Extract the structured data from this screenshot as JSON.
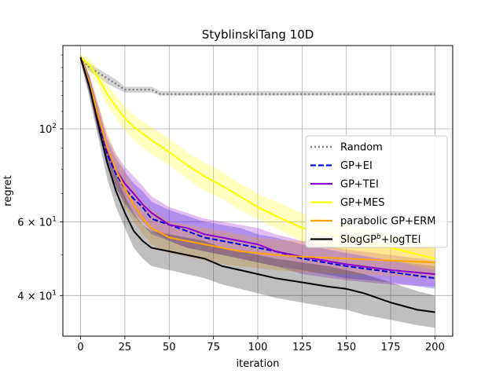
{
  "chart_data": {
    "type": "line",
    "title": "StyblinskiTang 10D",
    "xlabel": "iteration",
    "ylabel": "regret",
    "xlim": [
      -10,
      210
    ],
    "ylim": [
      32,
      158
    ],
    "yscale": "log",
    "grid": true,
    "legend_position": "center-right",
    "x_ticks": [
      0,
      25,
      50,
      75,
      100,
      125,
      150,
      175,
      200
    ],
    "y_ticks": [
      {
        "value": 100,
        "label_base": "10",
        "label_exp": "2"
      },
      {
        "value": 60,
        "label_base": "6 × 10",
        "label_exp": "1"
      },
      {
        "value": 40,
        "label_base": "4 × 10",
        "label_exp": "1"
      }
    ],
    "series": [
      {
        "name": "Random",
        "color": "#808080",
        "style": "dotted",
        "x": [
          0,
          5,
          10,
          15,
          20,
          25,
          30,
          40,
          45,
          50,
          100,
          150,
          200
        ],
        "y": [
          148,
          140,
          136,
          132,
          128,
          124,
          124,
          124,
          121,
          121,
          121,
          121,
          121
        ],
        "lower": [
          145,
          137,
          133,
          128,
          125,
          122,
          122,
          122,
          120,
          120,
          120,
          120,
          120
        ],
        "upper": [
          150,
          143,
          139,
          135,
          131,
          126,
          126,
          126,
          123,
          123,
          123,
          123,
          123
        ]
      },
      {
        "name": "GP+EI",
        "color": "#0000dd",
        "style": "dashed",
        "x": [
          0,
          5,
          10,
          15,
          20,
          25,
          30,
          35,
          40,
          50,
          60,
          70,
          80,
          90,
          100,
          110,
          125,
          150,
          175,
          200
        ],
        "y": [
          148,
          128,
          105,
          87,
          78,
          72,
          68,
          65,
          61,
          59,
          57,
          55,
          54,
          53,
          52,
          51,
          49,
          47,
          45.5,
          44
        ],
        "lower": [
          145,
          122,
          98,
          81,
          72,
          66,
          62,
          59,
          56,
          54,
          52,
          51,
          50,
          49,
          48,
          47,
          46,
          44,
          43,
          41.5
        ],
        "upper": [
          150,
          133,
          112,
          94,
          85,
          79,
          74,
          71,
          67,
          64,
          62,
          60,
          59,
          58,
          56,
          55,
          53,
          50.5,
          48.5,
          47
        ]
      },
      {
        "name": "GP+TEI",
        "color": "#8a00d0",
        "style": "solid",
        "x": [
          0,
          5,
          10,
          15,
          20,
          25,
          30,
          35,
          40,
          50,
          60,
          70,
          80,
          90,
          100,
          110,
          125,
          150,
          175,
          200
        ],
        "y": [
          148,
          128,
          106,
          89,
          80,
          74,
          70,
          66,
          63,
          59,
          58,
          56,
          55,
          54,
          53,
          51,
          49.5,
          47.5,
          46,
          45
        ],
        "lower": [
          145,
          121,
          98,
          82,
          73,
          67,
          63,
          60,
          57,
          54,
          52,
          51,
          50,
          49,
          48,
          47,
          45,
          43.5,
          42.5,
          42
        ],
        "upper": [
          150,
          134,
          114,
          96,
          87,
          81,
          77,
          73,
          69,
          65,
          63,
          61,
          60,
          59,
          58,
          56,
          54,
          51.5,
          50,
          48.5
        ]
      },
      {
        "name": "GP+MES",
        "color": "#ffff00",
        "style": "solid",
        "x": [
          0,
          5,
          10,
          15,
          20,
          25,
          30,
          40,
          50,
          60,
          70,
          80,
          90,
          100,
          110,
          125,
          150,
          175,
          200
        ],
        "y": [
          148,
          142,
          132,
          121,
          113,
          106,
          101,
          94,
          88,
          82,
          77,
          73,
          69,
          65,
          62,
          58,
          55,
          52,
          49
        ],
        "lower": [
          145,
          137,
          126,
          114,
          106,
          99,
          94,
          87,
          82,
          76,
          71,
          68,
          64,
          61,
          58,
          54,
          51,
          48.5,
          46
        ],
        "upper": [
          150,
          147,
          138,
          128,
          120,
          113,
          108,
          101,
          95,
          88,
          83,
          79,
          74,
          70,
          67,
          63,
          59,
          56,
          53
        ]
      },
      {
        "name": "parabolic GP+ERM",
        "color": "#ffa500",
        "style": "solid",
        "x": [
          0,
          5,
          10,
          15,
          20,
          25,
          30,
          35,
          40,
          50,
          60,
          70,
          80,
          90,
          100,
          110,
          125,
          150,
          175,
          200
        ],
        "y": [
          148,
          129,
          107,
          90,
          80,
          72,
          66,
          61,
          58,
          55,
          54,
          53,
          52,
          51,
          50.5,
          50,
          49.5,
          49,
          48.5,
          48
        ],
        "lower": [
          145,
          122,
          99,
          82,
          73,
          65,
          60,
          56,
          53,
          50.5,
          49.5,
          48.5,
          47.5,
          47,
          46.5,
          46,
          45.5,
          45,
          44.5,
          44
        ],
        "upper": [
          150,
          135,
          115,
          98,
          87,
          79,
          72,
          67,
          64,
          60,
          59,
          58,
          57,
          56,
          55,
          54.5,
          54,
          53,
          52.5,
          52
        ]
      },
      {
        "name": "SlogGP$^b$+logTEI",
        "color": "#000000",
        "style": "solid",
        "x": [
          0,
          5,
          10,
          15,
          20,
          25,
          30,
          35,
          40,
          50,
          60,
          70,
          80,
          90,
          100,
          110,
          125,
          140,
          150,
          160,
          175,
          190,
          200
        ],
        "y": [
          148,
          126,
          102,
          83,
          71,
          63,
          57,
          54,
          52,
          51,
          50,
          49,
          47,
          46,
          45,
          44,
          43,
          42,
          41.5,
          40.5,
          38.5,
          37,
          36.5
        ],
        "lower": [
          145,
          119,
          95,
          76,
          65,
          58,
          52,
          49,
          47,
          46,
          45,
          44,
          42.5,
          41.5,
          40.5,
          39.5,
          38.5,
          37.5,
          37,
          36,
          35,
          34,
          33.5
        ],
        "upper": [
          150,
          133,
          109,
          90,
          78,
          69,
          63,
          59,
          57,
          56,
          55,
          54,
          52,
          51,
          50,
          49,
          48,
          47,
          46,
          45,
          43,
          41,
          40
        ]
      }
    ]
  }
}
